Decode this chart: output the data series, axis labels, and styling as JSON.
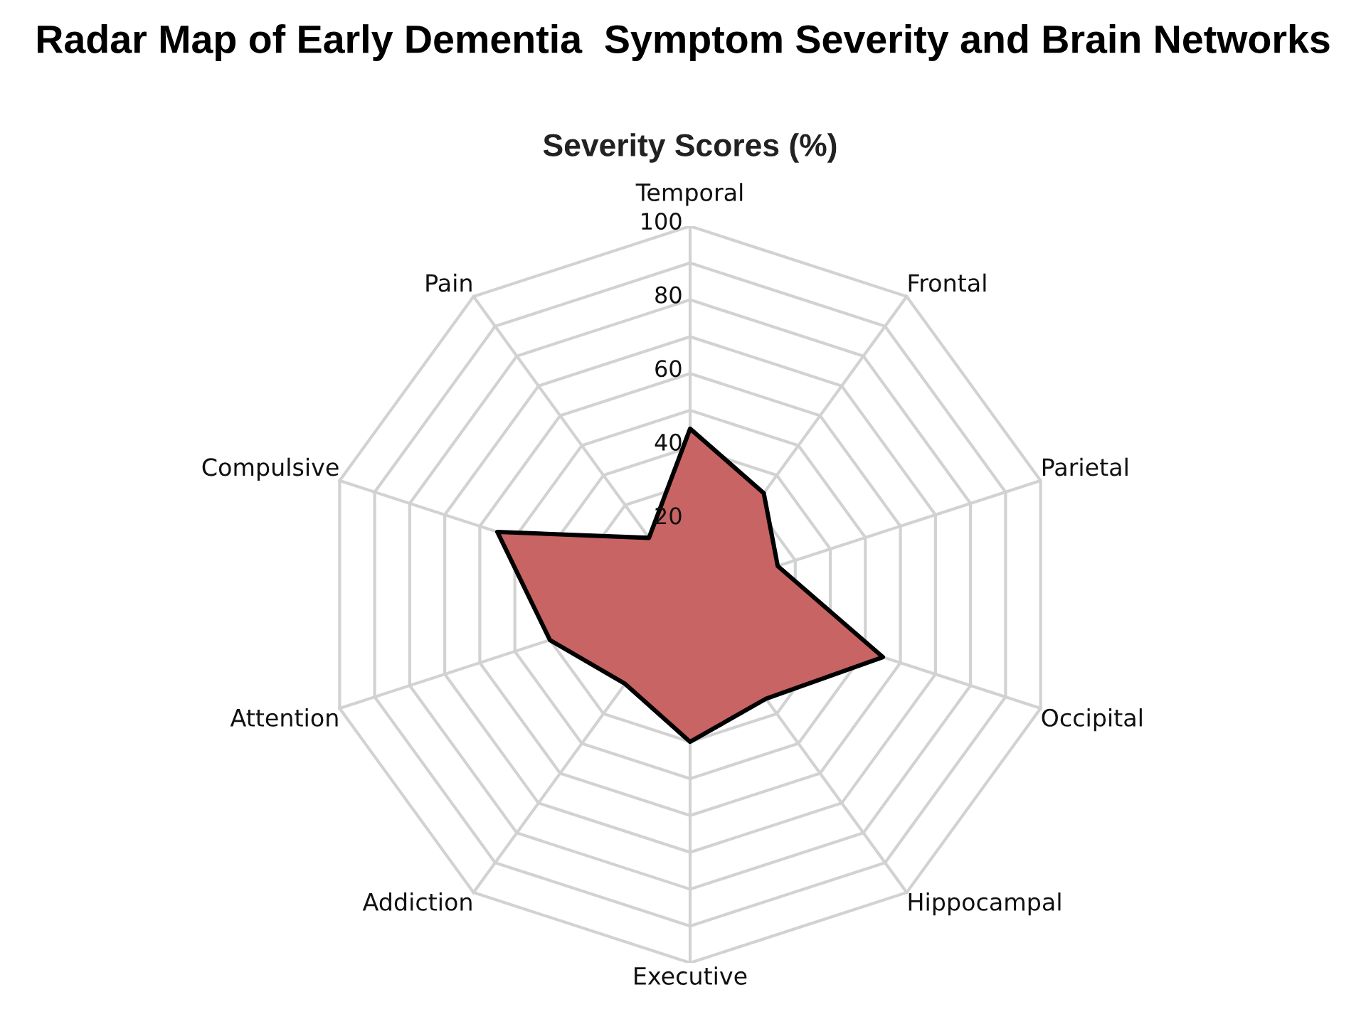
{
  "chart_data": {
    "type": "radar",
    "title": "Radar Map of Early Dementia  Symptom Severity and Brain Networks",
    "subtitle": "Severity Scores (%)",
    "categories": [
      "Temporal",
      "Frontal",
      "Parietal",
      "Occipital",
      "Hippocampal",
      "Executive",
      "Addiction",
      "Attention",
      "Compulsive",
      "Pain"
    ],
    "series": [
      {
        "color": "#c86464",
        "values": [
          45,
          34,
          25,
          55,
          35,
          40,
          30,
          40,
          55,
          19
        ]
      }
    ],
    "ylim": [
      0,
      100
    ],
    "yticks": [
      20,
      40,
      60,
      80,
      100
    ],
    "grid": true
  }
}
